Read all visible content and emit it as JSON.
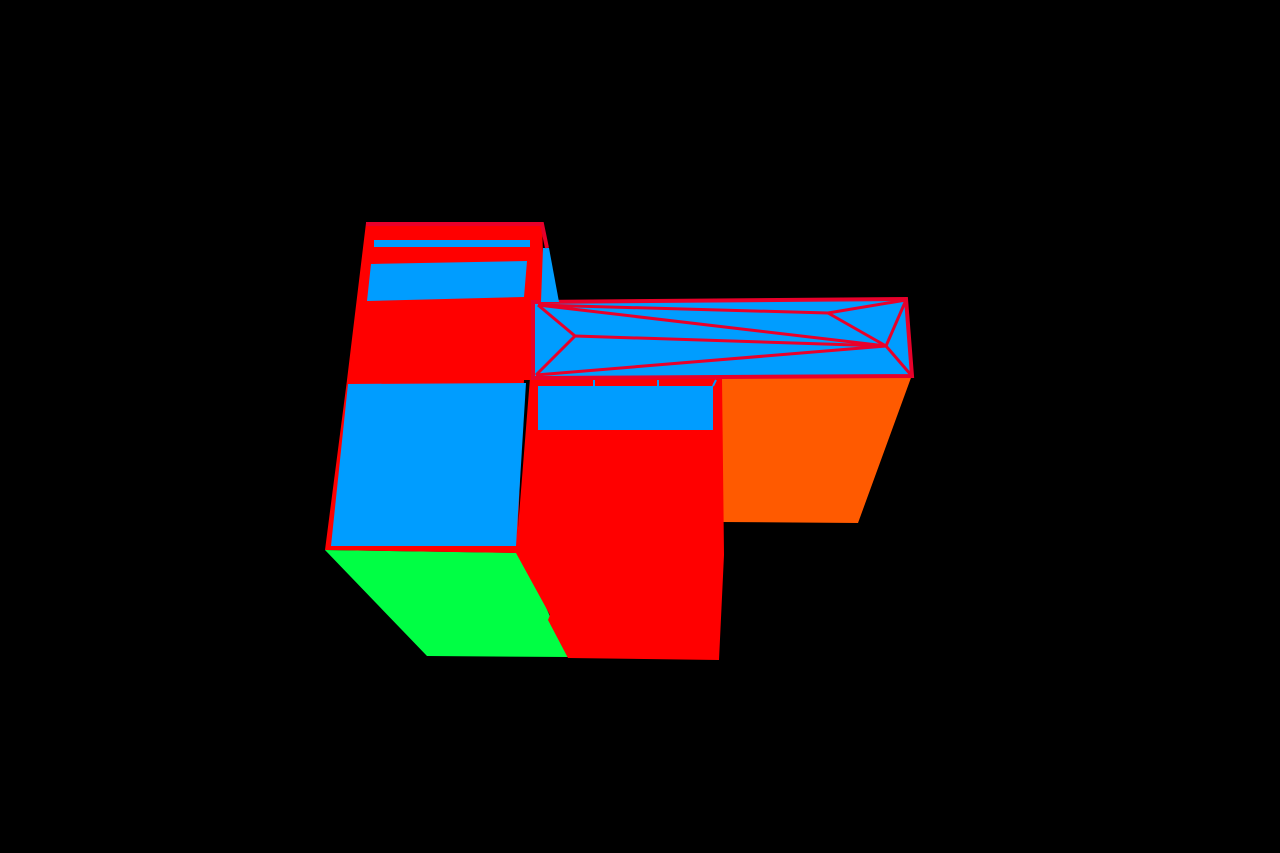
{
  "scene": {
    "background": "#000000",
    "colors": {
      "red": "#ff0000",
      "blue": "#009dff",
      "orange": "#ff5a00",
      "green": "#00ff44",
      "outline": "#e8002a"
    }
  }
}
